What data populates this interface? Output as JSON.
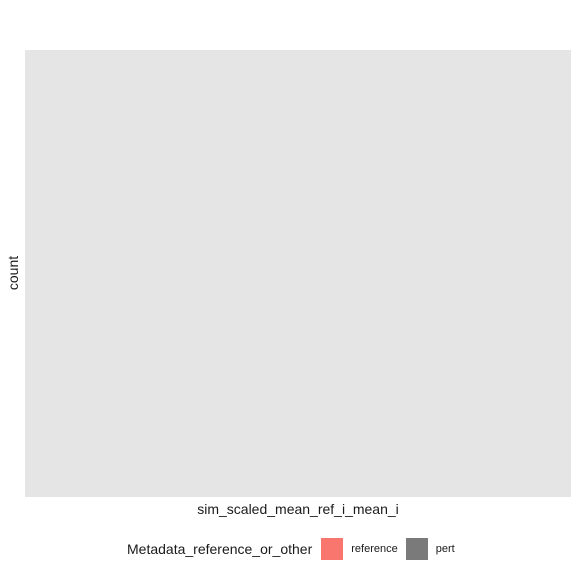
{
  "chart_data": {
    "type": "bar",
    "title": "",
    "xlabel": "sim_scaled_mean_ref_i_mean_i",
    "ylabel": "count",
    "series": [],
    "grid": false,
    "legend": {
      "position": "bottom",
      "title": "Metadata_reference_or_other",
      "entries": [
        {
          "label": "reference",
          "color": "#f8766d"
        },
        {
          "label": "pert",
          "color": "#7a7a7a"
        }
      ]
    },
    "panel_background": "#e5e5e5"
  }
}
